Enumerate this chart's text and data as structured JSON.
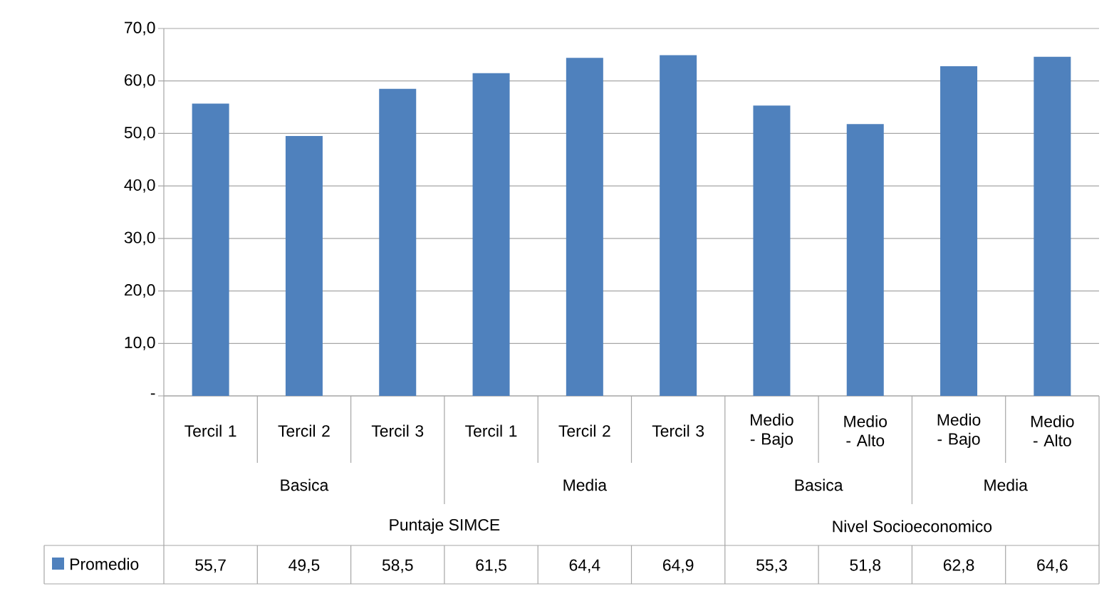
{
  "chart_data": {
    "type": "bar",
    "categories": [
      "Tercil 1",
      "Tercil 2",
      "Tercil 3",
      "Tercil 1",
      "Tercil 2",
      "Tercil 3",
      "Medio - Bajo",
      "Medio - Alto",
      "Medio - Bajo",
      "Medio - Alto"
    ],
    "series": [
      {
        "name": "Promedio",
        "color": "#4f81bd",
        "values": [
          55.7,
          49.5,
          58.5,
          61.5,
          64.4,
          64.9,
          55.3,
          51.8,
          62.8,
          64.6
        ],
        "value_labels": [
          "55,7",
          "49,5",
          "58,5",
          "61,5",
          "64,4",
          "64,9",
          "55,3",
          "51,8",
          "62,8",
          "64,6"
        ]
      }
    ],
    "ylim": [
      0,
      70
    ],
    "yticks": [
      {
        "value": 0,
        "label": "-"
      },
      {
        "value": 10,
        "label": "10,0"
      },
      {
        "value": 20,
        "label": "20,0"
      },
      {
        "value": 30,
        "label": "30,0"
      },
      {
        "value": 40,
        "label": "40,0"
      },
      {
        "value": 50,
        "label": "50,0"
      },
      {
        "value": 60,
        "label": "60,0"
      },
      {
        "value": 70,
        "label": "70,0"
      }
    ],
    "grid": "y",
    "legend": "bottom left",
    "annotations": [
      "Basica",
      "Media",
      "Basica",
      "Media",
      "Puntaje SIMCE",
      "Nivel Socioeconomico"
    ]
  }
}
